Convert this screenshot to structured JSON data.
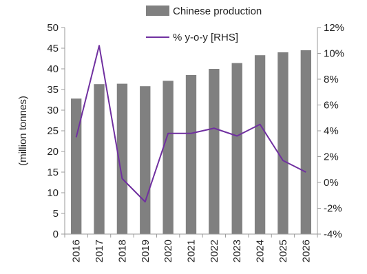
{
  "chart_data": {
    "type": "bar",
    "categories": [
      "2016",
      "2017",
      "2018",
      "2019",
      "2020",
      "2021",
      "2022",
      "2023",
      "2024",
      "2025",
      "2026"
    ],
    "series": [
      {
        "name": "Chinese production",
        "type": "bar",
        "axis": "left",
        "color": "#808080",
        "values": [
          32.8,
          36.3,
          36.4,
          35.8,
          37.1,
          38.5,
          40.0,
          41.4,
          43.3,
          44.0,
          44.5
        ]
      },
      {
        "name": "% y-o-y [RHS]",
        "type": "line",
        "axis": "right",
        "color": "#7030A0",
        "values": [
          3.5,
          10.6,
          0.3,
          -1.5,
          3.8,
          3.8,
          4.2,
          3.6,
          4.5,
          1.7,
          0.8
        ]
      }
    ],
    "ylabel": "(million tonnes)",
    "ylim": [
      0,
      50
    ],
    "yticks": [
      "0",
      "5",
      "10",
      "15",
      "20",
      "25",
      "30",
      "35",
      "40",
      "45",
      "50"
    ],
    "y2lim": [
      -4,
      12
    ],
    "y2ticks": [
      "-4%",
      "-2%",
      "0%",
      "2%",
      "4%",
      "6%",
      "8%",
      "10%",
      "12%"
    ],
    "legend": "top-right",
    "grid": false
  }
}
